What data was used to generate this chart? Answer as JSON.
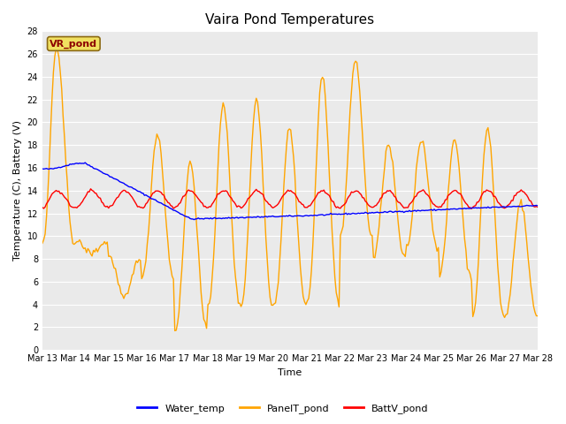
{
  "title": "Vaira Pond Temperatures",
  "ylabel": "Temperature (C), Battery (V)",
  "xlabel": "Time",
  "ylim": [
    0,
    28
  ],
  "yticks": [
    0,
    2,
    4,
    6,
    8,
    10,
    12,
    14,
    16,
    18,
    20,
    22,
    24,
    26,
    28
  ],
  "xtick_labels": [
    "Mar 13",
    "Mar 14",
    "Mar 15",
    "Mar 16",
    "Mar 17",
    "Mar 18",
    "Mar 19",
    "Mar 20",
    "Mar 21",
    "Mar 22",
    "Mar 23",
    "Mar 24",
    "Mar 25",
    "Mar 26",
    "Mar 27",
    "Mar 28"
  ],
  "station_label": "VR_pond",
  "fig_bg_color": "#ffffff",
  "plot_bg_color": "#eaeaea",
  "grid_color": "#ffffff",
  "water_temp_color": "#0000ff",
  "panel_temp_color": "#ffa500",
  "batt_color": "#ff0000",
  "linewidth": 1.0,
  "title_fontsize": 11,
  "axis_fontsize": 8,
  "tick_fontsize": 7,
  "legend_fontsize": 8
}
